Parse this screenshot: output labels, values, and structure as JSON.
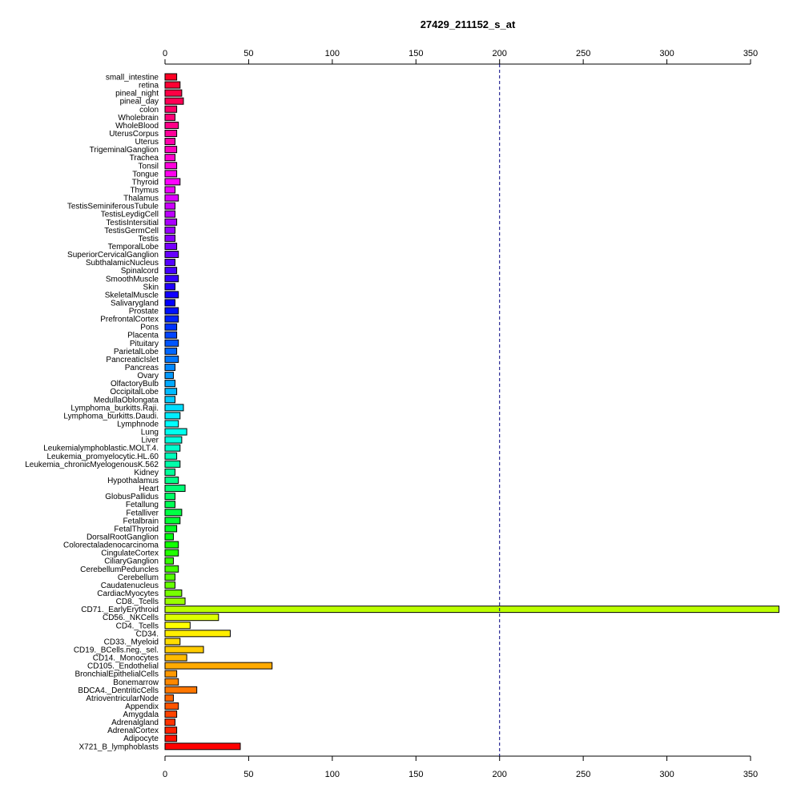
{
  "chart_data": {
    "type": "bar",
    "orientation": "horizontal",
    "title": "27429_211152_s_at",
    "xlabel": "",
    "ylabel": "",
    "xlim": [
      0,
      350
    ],
    "xticks": [
      0,
      50,
      100,
      150,
      200,
      250,
      300,
      350
    ],
    "reference_line": 200,
    "axes": "top and bottom",
    "categories": [
      "small_intestine",
      "retina",
      "pineal_night",
      "pineal_day",
      "colon",
      "Wholebrain",
      "WholeBlood",
      "UterusCorpus",
      "Uterus",
      "TrigeminalGanglion",
      "Trachea",
      "Tonsil",
      "Tongue",
      "Thyroid",
      "Thymus",
      "Thalamus",
      "TestisSeminiferousTubule",
      "TestisLeydigCell",
      "TestisIntersitial",
      "TestisGermCell",
      "Testis",
      "TemporalLobe",
      "SuperiorCervicalGanglion",
      "SubthalamicNucleus",
      "Spinalcord",
      "SmoothMuscle",
      "Skin",
      "SkeletalMuscle",
      "Salivarygland",
      "Prostate",
      "PrefrontalCortex",
      "Pons",
      "Placenta",
      "Pituitary",
      "ParietalLobe",
      "PancreaticIslet",
      "Pancreas",
      "Ovary",
      "OlfactoryBulb",
      "OccipitalLobe",
      "MedullaOblongata",
      "Lymphoma_burkitts.Raji.",
      "Lymphoma_burkitts.Daudi.",
      "Lymphnode",
      "Lung",
      "Liver",
      "Leukemialymphoblastic.MOLT.4.",
      "Leukemia_promyelocytic.HL.60",
      "Leukemia_chronicMyelogenousK.562",
      "Kidney",
      "Hypothalamus",
      "Heart",
      "GlobusPallidus",
      "Fetallung",
      "Fetalliver",
      "Fetalbrain",
      "FetalThyroid",
      "DorsalRootGanglion",
      "Colorectaladenocarcinoma",
      "CingulateCortex",
      "CiliaryGanglion",
      "CerebellumPeduncles",
      "Cerebellum",
      "Caudatenucleus",
      "CardiacMyocytes",
      "CD8._Tcells",
      "CD71._EarlyErythroid",
      "CD56._NKCells",
      "CD4._Tcells",
      "CD34.",
      "CD33._Myeloid",
      "CD19._BCells.neg._sel.",
      "CD14._Monocytes",
      "CD105._Endothelial",
      "BronchialEpithelialCells",
      "Bonemarrow",
      "BDCA4._DentriticCells",
      "AtrioventricularNode",
      "Appendix",
      "Amygdala",
      "Adrenalgland",
      "AdrenalCortex",
      "Adipocyte",
      "X721_B_lymphoblasts"
    ],
    "values": [
      7,
      9,
      10,
      11,
      7,
      6,
      8,
      7,
      6,
      7,
      6,
      7,
      7,
      9,
      6,
      8,
      6,
      6,
      7,
      6,
      6,
      7,
      8,
      6,
      7,
      8,
      6,
      8,
      6,
      8,
      8,
      7,
      7,
      8,
      7,
      8,
      6,
      5,
      6,
      7,
      6,
      11,
      9,
      8,
      13,
      10,
      9,
      7,
      9,
      6,
      8,
      12,
      6,
      6,
      10,
      9,
      7,
      5,
      8,
      8,
      5,
      8,
      6,
      6,
      10,
      12,
      367,
      32,
      15,
      39,
      9,
      23,
      13,
      64,
      7,
      8,
      19,
      5,
      8,
      7,
      6,
      7,
      7,
      45
    ],
    "colors": [
      "#ff0022",
      "#ff0033",
      "#ff0044",
      "#ff0055",
      "#ff0066",
      "#ff0077",
      "#ff0088",
      "#ff0099",
      "#ff00aa",
      "#ff00bb",
      "#ff00cc",
      "#ff00dd",
      "#ff00ee",
      "#ff00ff",
      "#ee00ff",
      "#dd00ff",
      "#cc00ff",
      "#bb00ff",
      "#aa00ff",
      "#9900ff",
      "#8800ff",
      "#7700ff",
      "#6600ff",
      "#5500ff",
      "#4400ff",
      "#3300ff",
      "#2200ff",
      "#1100ff",
      "#0000ff",
      "#0011ff",
      "#0022ff",
      "#0033ff",
      "#0044ff",
      "#0055ff",
      "#0066ff",
      "#0077ff",
      "#0088ff",
      "#0099ff",
      "#00aaff",
      "#00bbff",
      "#00ccff",
      "#00ddff",
      "#00eeff",
      "#00ffff",
      "#00ffee",
      "#00ffdd",
      "#00ffcc",
      "#00ffbb",
      "#00ffaa",
      "#00ff99",
      "#00ff88",
      "#00ff77",
      "#00ff66",
      "#00ff55",
      "#00ff44",
      "#00ff33",
      "#00ff22",
      "#00ff11",
      "#11ff00",
      "#22ff00",
      "#33ff00",
      "#44ff00",
      "#55ff00",
      "#66ff00",
      "#77ff00",
      "#99ff00",
      "#bbff00",
      "#ddff00",
      "#ffff00",
      "#ffee00",
      "#ffdd00",
      "#ffcc00",
      "#ffbb00",
      "#ffaa00",
      "#ff9900",
      "#ff8800",
      "#ff7700",
      "#ff6600",
      "#ff5500",
      "#ff4400",
      "#ff3300",
      "#ff2200",
      "#ff1100",
      "#ff0000"
    ],
    "reference_line_color": "#000080"
  }
}
